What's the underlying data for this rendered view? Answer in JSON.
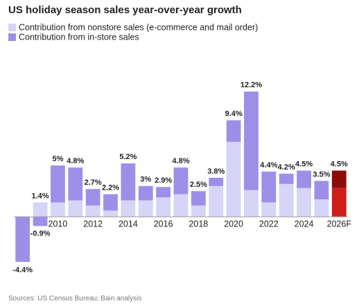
{
  "chart_data": {
    "type": "stacked-bar",
    "title": "US holiday season sales year-over-year growth",
    "source": "Sources: US Census Bureau; Bain analysis",
    "categories": [
      null,
      null,
      "2010",
      null,
      "2012",
      null,
      "2014",
      null,
      "2016",
      null,
      "2018",
      null,
      "2020",
      null,
      "2022",
      null,
      "2024",
      null,
      "2026F"
    ],
    "forecast_categories": [
      "2026F"
    ],
    "series": [
      {
        "name": "Contribution from nonstore sales (e-commerce and mail order)",
        "color": "#d6d4f7",
        "forecast_color": "#cc1f1a",
        "values": [
          0,
          1.4,
          1.4,
          1.6,
          1.1,
          0.6,
          1.6,
          1.6,
          1.9,
          2.2,
          1.1,
          3.0,
          7.3,
          2.6,
          1.4,
          3.2,
          2.8,
          1.7,
          2.8
        ],
        "value_labels": [
          null,
          "1.4%",
          null,
          null,
          null,
          null,
          null,
          null,
          null,
          null,
          null,
          null,
          null,
          null,
          null,
          null,
          null,
          null,
          null
        ]
      },
      {
        "name": "Contribution from in-store sales",
        "color": "#9d8fe8",
        "forecast_color": "#8c0c0c",
        "values": [
          -4.4,
          -0.9,
          3.6,
          3.2,
          1.6,
          1.6,
          3.6,
          1.4,
          1.0,
          2.6,
          1.4,
          0.8,
          2.1,
          9.6,
          3.0,
          1.0,
          1.7,
          1.8,
          1.7
        ],
        "value_labels": [
          null,
          "-0.9%",
          null,
          null,
          null,
          null,
          null,
          null,
          null,
          null,
          null,
          null,
          null,
          null,
          null,
          null,
          null,
          null,
          null
        ]
      }
    ],
    "totals": {
      "values": [
        -4.4,
        null,
        5,
        4.8,
        2.7,
        2.2,
        5.2,
        3,
        2.9,
        4.8,
        2.5,
        3.8,
        9.4,
        12.2,
        4.4,
        4.2,
        4.5,
        3.5,
        4.5
      ],
      "value_labels": [
        "-4.4%",
        null,
        "5%",
        "4.8%",
        "2.7%",
        "2.2%",
        "5.2%",
        "3%",
        "2.9%",
        "4.8%",
        "2.5%",
        "3.8%",
        "9.4%",
        "12.2%",
        "4.4%",
        "4.2%",
        "4.5%",
        "3.5%",
        "4.5%"
      ]
    },
    "ylim": [
      -5,
      13
    ]
  }
}
